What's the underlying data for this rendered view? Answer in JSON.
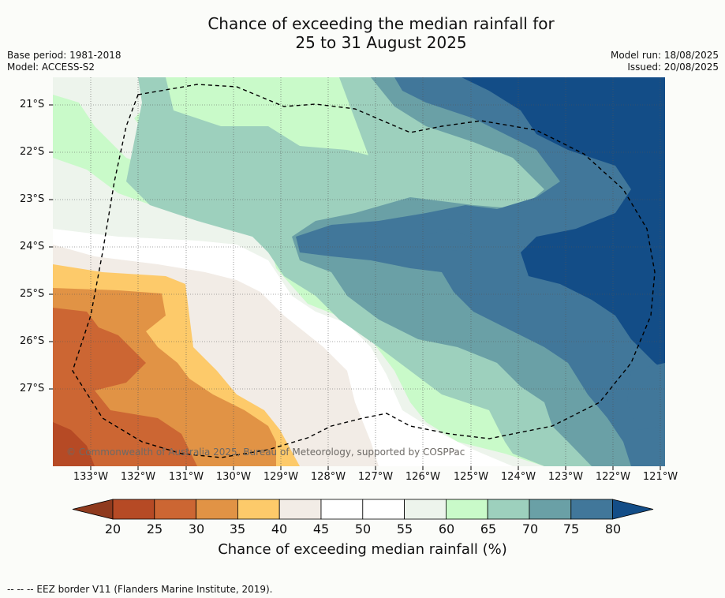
{
  "title_line1": "Chance of exceeding the median rainfall for",
  "title_line2": "25 to 31 August 2025",
  "meta": {
    "base_period": "Base period: 1981-2018",
    "model": "Model: ACCESS-S2",
    "model_run": "Model run: 18/08/2025",
    "issued": "Issued: 20/08/2025"
  },
  "lat_labels": [
    "21°S",
    "22°S",
    "23°S",
    "24°S",
    "25°S",
    "26°S",
    "27°S"
  ],
  "lon_labels": [
    "133°W",
    "132°W",
    "131°W",
    "130°W",
    "129°W",
    "128°W",
    "127°W",
    "126°W",
    "125°W",
    "124°W",
    "123°W",
    "122°W",
    "121°W"
  ],
  "copyright": "© Commonwealth of Australia 2025, Bureau of Meteorology, supported by COSPPac",
  "colorbar": {
    "ticks": [
      "20",
      "25",
      "30",
      "35",
      "40",
      "45",
      "50",
      "55",
      "60",
      "65",
      "70",
      "75",
      "80"
    ],
    "label": "Chance of exceeding median rainfall (%)",
    "colors": [
      "#8f3a1e",
      "#b64a25",
      "#cc6633",
      "#e19345",
      "#fdca6a",
      "#f2ece6",
      "#ffffff",
      "#ffffff",
      "#edf4ec",
      "#c9fac9",
      "#9dd0bd",
      "#6aa0a6",
      "#41779a",
      "#134d87"
    ]
  },
  "footer": "--  --  -- EEZ border V11 (Flanders Marine Institute, 2019)."
}
